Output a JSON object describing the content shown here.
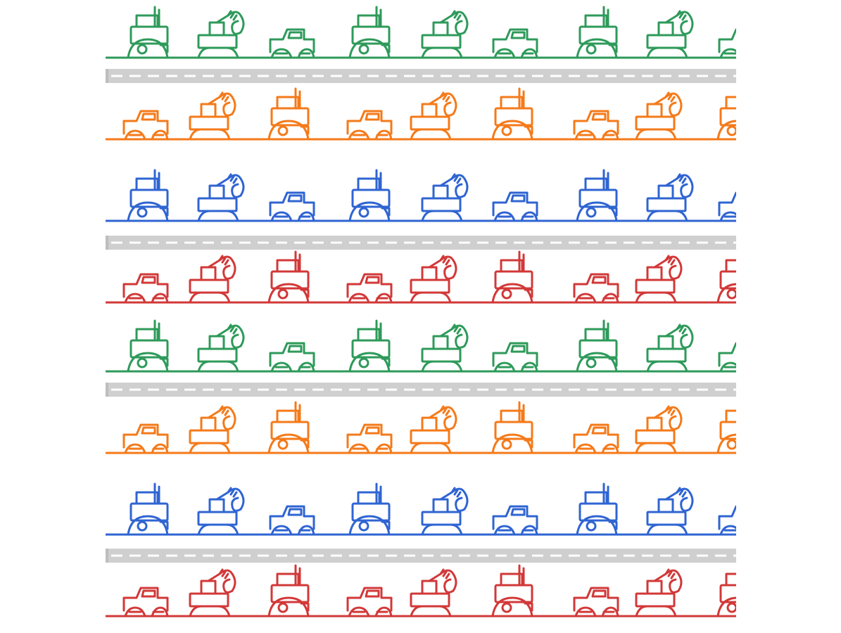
{
  "colors": {
    "green": "#2e9a5a",
    "orange": "#f47a1a",
    "blue": "#2f64d2",
    "red": "#d23838",
    "road": "#cfcfcf",
    "road_edge": "#bdbdbd",
    "road_dash": "#ffffff",
    "background": "#ffffff"
  },
  "strip_colors": [
    "green",
    "orange",
    "blue",
    "red",
    "green",
    "orange",
    "blue",
    "red"
  ],
  "vehicle_sequences": {
    "upper": [
      "tractor",
      "excavator",
      "pickup-truck"
    ],
    "lower": [
      "pickup-truck",
      "excavator",
      "tractor"
    ]
  }
}
